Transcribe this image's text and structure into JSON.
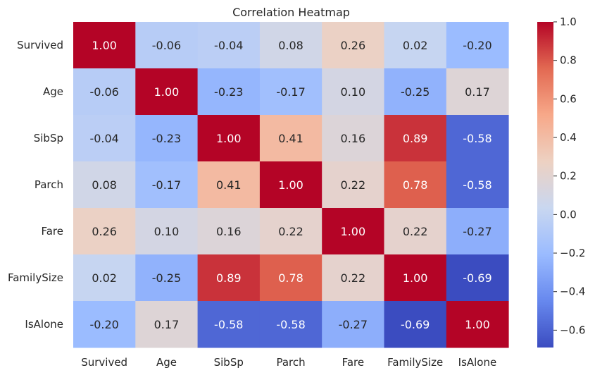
{
  "chart_data": {
    "type": "heatmap",
    "title": "Correlation Heatmap",
    "rows": [
      "Survived",
      "Age",
      "SibSp",
      "Parch",
      "Fare",
      "FamilySize",
      "IsAlone"
    ],
    "columns": [
      "Survived",
      "Age",
      "SibSp",
      "Parch",
      "Fare",
      "FamilySize",
      "IsAlone"
    ],
    "values": [
      [
        1.0,
        -0.06,
        -0.04,
        0.08,
        0.26,
        0.02,
        -0.2
      ],
      [
        -0.06,
        1.0,
        -0.23,
        -0.17,
        0.1,
        -0.25,
        0.17
      ],
      [
        -0.04,
        -0.23,
        1.0,
        0.41,
        0.16,
        0.89,
        -0.58
      ],
      [
        0.08,
        -0.17,
        0.41,
        1.0,
        0.22,
        0.78,
        -0.58
      ],
      [
        0.26,
        0.1,
        0.16,
        0.22,
        1.0,
        0.22,
        -0.27
      ],
      [
        0.02,
        -0.25,
        0.89,
        0.78,
        0.22,
        1.0,
        -0.69
      ],
      [
        -0.2,
        0.17,
        -0.58,
        -0.58,
        -0.27,
        -0.69,
        1.0
      ]
    ],
    "value_format": "2 decimals",
    "colormap": "coolwarm",
    "colormap_stops": [
      "#3b4cc0",
      "#6788ee",
      "#9abbff",
      "#c9d7f0",
      "#edd1c2",
      "#f7a889",
      "#e26952",
      "#b40426"
    ],
    "colorbar": {
      "range": [
        -0.69,
        1.0
      ],
      "ticks": [
        "1.0",
        "0.8",
        "0.6",
        "0.4",
        "0.2",
        "0.0",
        "−0.2",
        "−0.4",
        "−0.6"
      ],
      "tick_values": [
        1.0,
        0.8,
        0.6,
        0.4,
        0.2,
        0.0,
        -0.2,
        -0.4,
        -0.6
      ]
    },
    "grid": false,
    "legend": "colorbar-right"
  }
}
